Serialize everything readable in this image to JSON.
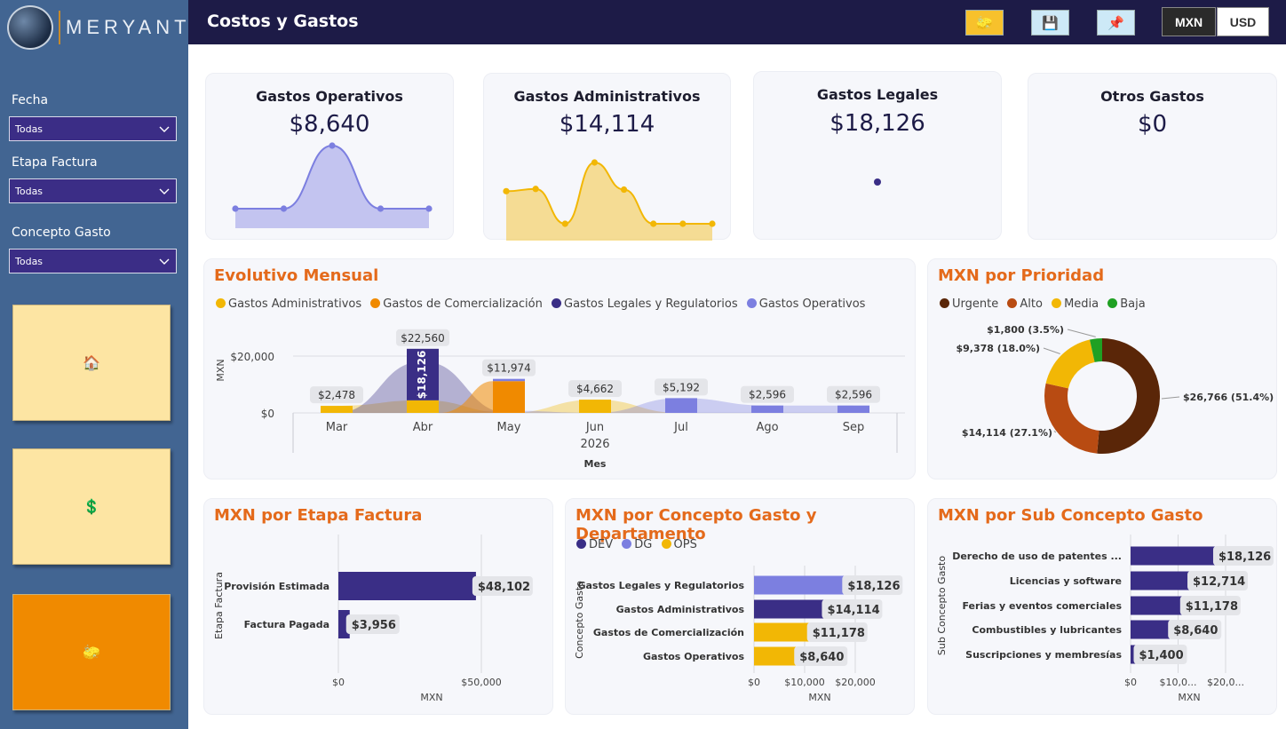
{
  "brand": {
    "name": "MERYANT"
  },
  "header": {
    "title": "Costos y Gastos",
    "buttons": [
      "clear-filters-icon",
      "save-icon",
      "pin-icon"
    ],
    "currency": {
      "options": [
        "MXN",
        "USD"
      ],
      "selected": "MXN"
    }
  },
  "filters": [
    {
      "label": "Fecha",
      "value": "Todas"
    },
    {
      "label": "Etapa Factura",
      "value": "Todas"
    },
    {
      "label": "Concepto Gasto",
      "value": "Todas"
    }
  ],
  "nav": [
    {
      "icon": "home-icon",
      "glyph": "🏠"
    },
    {
      "icon": "dollar-icon",
      "glyph": "💲"
    },
    {
      "icon": "eraser-icon",
      "glyph": "🧽"
    }
  ],
  "kpis": [
    {
      "title": "Gastos Operativos",
      "value": "$8,640",
      "color": "#7c7fe0"
    },
    {
      "title": "Gastos Administrativos",
      "value": "$14,114",
      "color": "#f2b705"
    },
    {
      "title": "Gastos Legales",
      "value": "$18,126",
      "color": "#3a2e86"
    },
    {
      "title": "Otros Gastos",
      "value": "$0",
      "color": "#3a2e86"
    }
  ],
  "monthly": {
    "title": "Evolutivo Mensual",
    "legend": [
      {
        "name": "Gastos Administrativos",
        "color": "#f2b705"
      },
      {
        "name": "Gastos de Comercialización",
        "color": "#f08a00"
      },
      {
        "name": "Gastos Legales y Regulatorios",
        "color": "#3a2e86"
      },
      {
        "name": "Gastos Operativos",
        "color": "#7c7fe0"
      }
    ],
    "ylabel": "MXN",
    "xlabel": "Mes",
    "year": "2026",
    "yticks": [
      "$20,000",
      "$0"
    ],
    "months": [
      "Mar",
      "Abr",
      "May",
      "Jun",
      "Jul",
      "Ago",
      "Sep"
    ],
    "totals": [
      "$2,478",
      "$22,560",
      "$11,974",
      "$4,662",
      "$5,192",
      "$2,596",
      "$2,596"
    ],
    "inner_label": "$18,126"
  },
  "priority": {
    "title": "MXN por Prioridad",
    "legend": [
      {
        "name": "Urgente",
        "color": "#5a2608"
      },
      {
        "name": "Alto",
        "color": "#b84b12"
      },
      {
        "name": "Media",
        "color": "#f2b705"
      },
      {
        "name": "Baja",
        "color": "#1fa023"
      }
    ],
    "labels": [
      "$26,766 (51.4%)",
      "$14,114 (27.1%)",
      "$9,378 (18.0%)",
      "$1,800 (3.5%)"
    ]
  },
  "etapa": {
    "title": "MXN por Etapa Factura",
    "ylabel": "Etapa Factura",
    "xlabel": "MXN",
    "xticks": [
      "$0",
      "$50,000"
    ],
    "categories": [
      "Provisión Estimada",
      "Factura Pagada"
    ],
    "labels": [
      "$48,102",
      "$3,956"
    ]
  },
  "concepto": {
    "title": "MXN por Concepto Gasto y Departamento",
    "legend": [
      {
        "name": "DEV",
        "color": "#3a2e86"
      },
      {
        "name": "DG",
        "color": "#7c7fe0"
      },
      {
        "name": "OPS",
        "color": "#f2b705"
      }
    ],
    "ylabel": "Concepto Gasto",
    "xlabel": "MXN",
    "xticks": [
      "$0",
      "$10,000",
      "$20,000"
    ],
    "categories": [
      "Gastos Legales y Regulatorios",
      "Gastos Administrativos",
      "Gastos de Comercialización",
      "Gastos Operativos"
    ],
    "labels": [
      "$18,126",
      "$14,114",
      "$11,178",
      "$8,640"
    ]
  },
  "subconcepto": {
    "title": "MXN por Sub Concepto Gasto",
    "ylabel": "Sub Concepto Gasto",
    "xlabel": "MXN",
    "xticks": [
      "$0",
      "$10,0...",
      "$20,0..."
    ],
    "categories": [
      "Derecho de uso de patentes ...",
      "Licencias y software",
      "Ferias y eventos comerciales",
      "Combustibles y lubricantes",
      "Suscripciones y membresías"
    ],
    "labels": [
      "$18,126",
      "$12,714",
      "$11,178",
      "$8,640",
      "$1,400"
    ]
  },
  "chart_data": [
    {
      "type": "area",
      "title": "Gastos Operativos",
      "x": [
        1,
        2,
        3,
        4,
        5
      ],
      "values": [
        0,
        0,
        8640,
        0,
        0
      ]
    },
    {
      "type": "area",
      "title": "Gastos Administrativos",
      "x": [
        1,
        2,
        3,
        4,
        5,
        6,
        7,
        8
      ],
      "values": [
        2478,
        2650,
        0,
        4662,
        2600,
        0,
        0,
        0
      ]
    },
    {
      "type": "bar",
      "title": "Evolutivo Mensual",
      "xlabel": "Mes",
      "ylabel": "MXN",
      "categories": [
        "Mar",
        "Abr",
        "May",
        "Jun",
        "Jul",
        "Ago",
        "Sep"
      ],
      "ylim": [
        0,
        25000
      ],
      "series": [
        {
          "name": "Gastos Administrativos",
          "values": [
            2478,
            4434,
            0,
            4662,
            0,
            0,
            0
          ]
        },
        {
          "name": "Gastos de Comercialización",
          "values": [
            0,
            0,
            11178,
            0,
            0,
            0,
            0
          ]
        },
        {
          "name": "Gastos Legales y Regulatorios",
          "values": [
            0,
            18126,
            0,
            0,
            0,
            0,
            0
          ]
        },
        {
          "name": "Gastos Operativos",
          "values": [
            0,
            0,
            796,
            0,
            5192,
            2596,
            2596
          ]
        }
      ],
      "totals": [
        2478,
        22560,
        11974,
        4662,
        5192,
        2596,
        2596
      ]
    },
    {
      "type": "pie",
      "title": "MXN por Prioridad",
      "categories": [
        "Urgente",
        "Alto",
        "Media",
        "Baja"
      ],
      "values": [
        26766,
        14114,
        9378,
        1800
      ],
      "percents": [
        51.4,
        27.1,
        18.0,
        3.5
      ]
    },
    {
      "type": "bar",
      "title": "MXN por Etapa Factura",
      "categories": [
        "Provisión Estimada",
        "Factura Pagada"
      ],
      "values": [
        48102,
        3956
      ],
      "xlim": [
        0,
        60000
      ]
    },
    {
      "type": "bar",
      "title": "MXN por Concepto Gasto y Departamento",
      "categories": [
        "Gastos Legales y Regulatorios",
        "Gastos Administrativos",
        "Gastos de Comercialización",
        "Gastos Operativos"
      ],
      "series": [
        {
          "name": "DG",
          "values": [
            18126,
            0,
            0,
            0
          ]
        },
        {
          "name": "DEV",
          "values": [
            0,
            14114,
            0,
            0
          ]
        },
        {
          "name": "OPS",
          "values": [
            0,
            0,
            11178,
            8640
          ]
        }
      ],
      "xlim": [
        0,
        25000
      ]
    },
    {
      "type": "bar",
      "title": "MXN por Sub Concepto Gasto",
      "categories": [
        "Derecho de uso de patentes ...",
        "Licencias y software",
        "Ferias y eventos comerciales",
        "Combustibles y lubricantes",
        "Suscripciones y membresías"
      ],
      "values": [
        18126,
        12714,
        11178,
        8640,
        1400
      ],
      "xlim": [
        0,
        25000
      ]
    }
  ]
}
